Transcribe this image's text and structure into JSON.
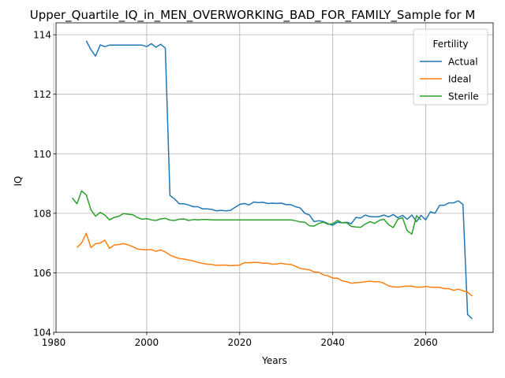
{
  "chart_data": {
    "type": "line",
    "title": "Upper_Quartile_IQ_in_MEN_OVERWORKING_BAD_FOR_FAMILY_Sample for M",
    "xlabel": "Years",
    "ylabel": "IQ",
    "xlim": [
      1980.5,
      2074.5
    ],
    "ylim": [
      104.0,
      114.4
    ],
    "xticks": [
      1980,
      2000,
      2020,
      2040,
      2060
    ],
    "yticks": [
      104,
      106,
      108,
      110,
      112,
      114
    ],
    "xtick_labels": [
      "1980",
      "2000",
      "2020",
      "2040",
      "2060"
    ],
    "ytick_labels": [
      "104",
      "106",
      "108",
      "110",
      "112",
      "114"
    ],
    "grid": true,
    "legend": {
      "title": "Fertility",
      "position": "top-right"
    },
    "series": [
      {
        "name": "Actual",
        "color": "#1f77b4",
        "x": [
          1987,
          1988,
          1989,
          1990,
          1991,
          1992,
          1993,
          1994,
          1995,
          1996,
          1997,
          1998,
          1999,
          2000,
          2001,
          2002,
          2003,
          2004,
          2005,
          2006,
          2007,
          2008,
          2009,
          2010,
          2011,
          2012,
          2013,
          2014,
          2015,
          2016,
          2017,
          2018,
          2019,
          2020,
          2021,
          2022,
          2023,
          2024,
          2025,
          2026,
          2027,
          2028,
          2029,
          2030,
          2031,
          2032,
          2033,
          2034,
          2035,
          2036,
          2037,
          2038,
          2039,
          2040,
          2041,
          2042,
          2043,
          2044,
          2045,
          2046,
          2047,
          2048,
          2049,
          2050,
          2051,
          2052,
          2053,
          2054,
          2055,
          2056,
          2057,
          2058,
          2059,
          2060,
          2061,
          2062,
          2063,
          2064,
          2065,
          2066,
          2067,
          2068,
          2069,
          2070
        ],
        "values": [
          113.8,
          113.5,
          113.28,
          113.66,
          113.6,
          113.65,
          113.65,
          113.65,
          113.65,
          113.65,
          113.65,
          113.65,
          113.65,
          113.6,
          113.7,
          113.58,
          113.68,
          113.55,
          108.6,
          108.48,
          108.32,
          108.32,
          108.28,
          108.22,
          108.22,
          108.15,
          108.15,
          108.13,
          108.08,
          108.1,
          108.08,
          108.1,
          108.2,
          108.3,
          108.33,
          108.28,
          108.38,
          108.36,
          108.37,
          108.33,
          108.34,
          108.33,
          108.34,
          108.29,
          108.29,
          108.22,
          108.18,
          108.0,
          107.94,
          107.72,
          107.75,
          107.72,
          107.65,
          107.6,
          107.7,
          107.68,
          107.7,
          107.65,
          107.86,
          107.84,
          107.94,
          107.89,
          107.88,
          107.89,
          107.94,
          107.88,
          107.96,
          107.85,
          107.93,
          107.8,
          107.94,
          107.72,
          107.93,
          107.78,
          108.05,
          108.0,
          108.27,
          108.27,
          108.35,
          108.35,
          108.42,
          108.3,
          104.6,
          104.45
        ]
      },
      {
        "name": "Ideal",
        "color": "#ff7f0e",
        "x": [
          1985,
          1986,
          1987,
          1988,
          1989,
          1990,
          1991,
          1992,
          1993,
          1994,
          1995,
          1996,
          1997,
          1998,
          1999,
          2000,
          2001,
          2002,
          2003,
          2004,
          2005,
          2006,
          2007,
          2008,
          2009,
          2010,
          2011,
          2012,
          2013,
          2014,
          2015,
          2016,
          2017,
          2018,
          2019,
          2020,
          2021,
          2022,
          2023,
          2024,
          2025,
          2026,
          2027,
          2028,
          2029,
          2030,
          2031,
          2032,
          2033,
          2034,
          2035,
          2036,
          2037,
          2038,
          2039,
          2040,
          2041,
          2042,
          2043,
          2044,
          2045,
          2046,
          2047,
          2048,
          2049,
          2050,
          2051,
          2052,
          2053,
          2054,
          2055,
          2056,
          2057,
          2058,
          2059,
          2060,
          2061,
          2062,
          2063,
          2064,
          2065,
          2066,
          2067,
          2068,
          2069,
          2070
        ],
        "values": [
          106.85,
          107.0,
          107.33,
          106.85,
          106.98,
          107.0,
          107.1,
          106.82,
          106.93,
          106.95,
          106.98,
          106.94,
          106.88,
          106.8,
          106.78,
          106.77,
          106.78,
          106.72,
          106.77,
          106.7,
          106.6,
          106.53,
          106.48,
          106.46,
          106.43,
          106.4,
          106.35,
          106.32,
          106.29,
          106.28,
          106.25,
          106.26,
          106.26,
          106.24,
          106.25,
          106.26,
          106.34,
          106.34,
          106.35,
          106.35,
          106.32,
          106.32,
          106.29,
          106.3,
          106.32,
          106.29,
          106.28,
          106.22,
          106.15,
          106.12,
          106.1,
          106.03,
          106.02,
          105.93,
          105.9,
          105.82,
          105.82,
          105.73,
          105.7,
          105.65,
          105.67,
          105.68,
          105.7,
          105.72,
          105.7,
          105.7,
          105.65,
          105.56,
          105.53,
          105.52,
          105.54,
          105.55,
          105.55,
          105.52,
          105.52,
          105.54,
          105.52,
          105.51,
          105.51,
          105.47,
          105.47,
          105.41,
          105.45,
          105.4,
          105.35,
          105.22
        ]
      },
      {
        "name": "Sterile",
        "color": "#2ca02c",
        "x": [
          1984,
          1985,
          1986,
          1987,
          1988,
          1989,
          1990,
          1991,
          1992,
          1993,
          1994,
          1995,
          1996,
          1997,
          1998,
          1999,
          2000,
          2001,
          2002,
          2003,
          2004,
          2005,
          2006,
          2007,
          2008,
          2009,
          2010,
          2011,
          2012,
          2013,
          2014,
          2015,
          2016,
          2017,
          2018,
          2019,
          2020,
          2021,
          2022,
          2023,
          2024,
          2025,
          2026,
          2027,
          2028,
          2029,
          2030,
          2031,
          2032,
          2033,
          2034,
          2035,
          2036,
          2037,
          2038,
          2039,
          2040,
          2041,
          2042,
          2043,
          2044,
          2045,
          2046,
          2047,
          2048,
          2049,
          2050,
          2051,
          2052,
          2053,
          2054,
          2055,
          2056,
          2057,
          2058,
          2059
        ],
        "values": [
          108.52,
          108.32,
          108.75,
          108.62,
          108.12,
          107.9,
          108.03,
          107.94,
          107.78,
          107.86,
          107.9,
          107.99,
          107.97,
          107.95,
          107.86,
          107.8,
          107.82,
          107.78,
          107.76,
          107.81,
          107.83,
          107.77,
          107.76,
          107.8,
          107.81,
          107.76,
          107.79,
          107.78,
          107.79,
          107.79,
          107.78,
          107.78,
          107.78,
          107.78,
          107.78,
          107.78,
          107.78,
          107.78,
          107.78,
          107.78,
          107.78,
          107.78,
          107.78,
          107.78,
          107.78,
          107.78,
          107.78,
          107.78,
          107.75,
          107.71,
          107.7,
          107.58,
          107.57,
          107.66,
          107.7,
          107.63,
          107.65,
          107.76,
          107.68,
          107.68,
          107.56,
          107.54,
          107.53,
          107.64,
          107.72,
          107.66,
          107.76,
          107.8,
          107.62,
          107.52,
          107.8,
          107.85,
          107.42,
          107.3,
          107.92,
          107.78
        ]
      }
    ]
  }
}
